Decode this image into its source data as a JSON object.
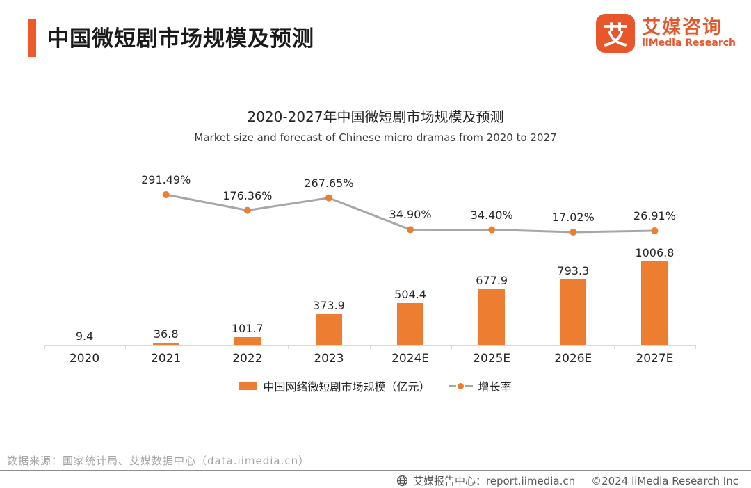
{
  "header": {
    "title": "中国微短剧市场规模及预测",
    "logo": {
      "mark": "艾",
      "name_cn": "艾媒咨询",
      "name_en": "iiMedia Research"
    }
  },
  "chart": {
    "title": "2020-2027年中国微短剧市场规模及预测",
    "subtitle": "Market size and forecast of Chinese micro dramas from 2020 to 2027"
  },
  "chart_data": {
    "type": "combo",
    "categories": [
      "2020",
      "2021",
      "2022",
      "2023",
      "2024E",
      "2025E",
      "2026E",
      "2027E"
    ],
    "series": [
      {
        "name": "中国网络微短剧市场规模（亿元）",
        "type": "bar",
        "color": "#ed7d31",
        "values": [
          9.4,
          36.8,
          101.7,
          373.9,
          504.4,
          677.9,
          793.3,
          1006.8
        ],
        "value_labels": [
          "9.4",
          "36.8",
          "101.7",
          "373.9",
          "504.4",
          "677.9",
          "793.3",
          "1006.8"
        ]
      },
      {
        "name": "增长率",
        "type": "line",
        "color": "#a6a6a6",
        "marker_color": "#ed7d31",
        "values": [
          null,
          291.49,
          176.36,
          267.65,
          34.9,
          34.4,
          17.02,
          26.91
        ],
        "value_labels": [
          "",
          "291.49%",
          "176.36%",
          "267.65%",
          "34.90%",
          "34.40%",
          "17.02%",
          "26.91%"
        ]
      }
    ],
    "title": "2020-2027年中国微短剧市场规模及预测",
    "xlabel": "",
    "ylabel": "",
    "grid": false,
    "legend_position": "bottom"
  },
  "legend": {
    "bar_label": "中国网络微短剧市场规模（亿元）",
    "line_label": "增长率"
  },
  "footer": {
    "source": "数据来源：国家统计局、艾媒数据中心（data.iimedia.cn）",
    "report_center": "艾媒报告中心：report.iimedia.cn",
    "copyright": "©2024  iiMedia Research Inc"
  },
  "colors": {
    "accent": "#f05a28",
    "logo": "#e8572c",
    "bar": "#ed7d31",
    "line": "#a6a6a6",
    "marker": "#ed7d31",
    "axis": "#d9d9d9"
  }
}
